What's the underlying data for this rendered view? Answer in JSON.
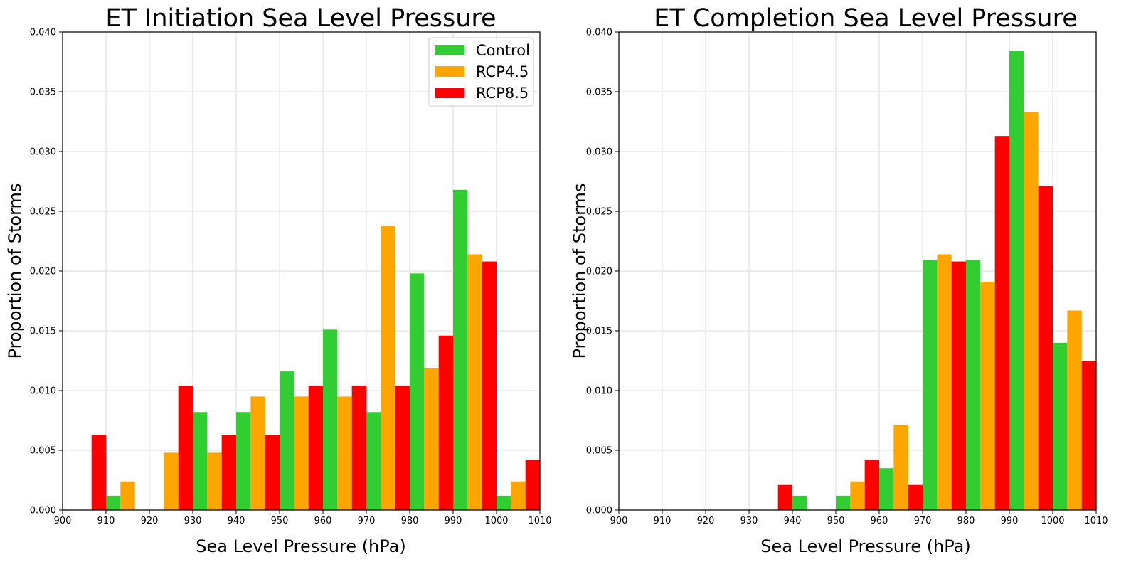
{
  "chart_data": [
    {
      "type": "bar",
      "title": "ET Initiation Sea Level Pressure",
      "xlabel": "Sea Level Pressure (hPa)",
      "ylabel": "Proportion of Storms",
      "xlim": [
        900,
        1010
      ],
      "ylim": [
        0,
        0.04
      ],
      "xticks": [
        "900",
        "910",
        "920",
        "930",
        "940",
        "950",
        "960",
        "970",
        "980",
        "990",
        "1000",
        "1010"
      ],
      "yticks": [
        "0.000",
        "0.005",
        "0.010",
        "0.015",
        "0.020",
        "0.025",
        "0.030",
        "0.035",
        "0.040"
      ],
      "bin_starts": [
        900,
        910,
        920,
        930,
        940,
        950,
        960,
        970,
        980,
        990,
        1000
      ],
      "bin_width": 10,
      "grid": true,
      "legend_position": "top-right",
      "series": [
        {
          "name": "Control",
          "color": "#32cd32",
          "values": [
            0,
            0.0012,
            0,
            0.0082,
            0.0082,
            0.0116,
            0.0151,
            0.0082,
            0.0198,
            0.0268,
            0.0012
          ]
        },
        {
          "name": "RCP4.5",
          "color": "#ffa500",
          "values": [
            0,
            0.0024,
            0.0048,
            0.0048,
            0.0095,
            0.0095,
            0.0095,
            0.0238,
            0.0119,
            0.0214,
            0.0024
          ]
        },
        {
          "name": "RCP8.5",
          "color": "#ff0000",
          "values": [
            0.0063,
            0,
            0.0104,
            0.0063,
            0.0063,
            0.0104,
            0.0104,
            0.0104,
            0.0146,
            0.0208,
            0.0042
          ]
        }
      ]
    },
    {
      "type": "bar",
      "title": "ET Completion Sea Level Pressure",
      "xlabel": "Sea Level Pressure (hPa)",
      "ylabel": "Proportion of Storms",
      "xlim": [
        900,
        1010
      ],
      "ylim": [
        0,
        0.04
      ],
      "xticks": [
        "900",
        "910",
        "920",
        "930",
        "940",
        "950",
        "960",
        "970",
        "980",
        "990",
        "1000",
        "1010"
      ],
      "yticks": [
        "0.000",
        "0.005",
        "0.010",
        "0.015",
        "0.020",
        "0.025",
        "0.030",
        "0.035",
        "0.040"
      ],
      "bin_starts": [
        900,
        910,
        920,
        930,
        940,
        950,
        960,
        970,
        980,
        990,
        1000
      ],
      "bin_width": 10,
      "grid": true,
      "series": [
        {
          "name": "Control",
          "color": "#32cd32",
          "values": [
            0,
            0,
            0,
            0,
            0.0012,
            0.0012,
            0.0035,
            0.0209,
            0.0209,
            0.0384,
            0.014
          ]
        },
        {
          "name": "RCP4.5",
          "color": "#ffa500",
          "values": [
            0,
            0,
            0,
            0,
            0,
            0.0024,
            0.0071,
            0.0214,
            0.0191,
            0.0333,
            0.0167
          ]
        },
        {
          "name": "RCP8.5",
          "color": "#ff0000",
          "values": [
            0,
            0,
            0,
            0.0021,
            0,
            0.0042,
            0.0021,
            0.0208,
            0.0313,
            0.0271,
            0.0125
          ]
        }
      ]
    }
  ]
}
